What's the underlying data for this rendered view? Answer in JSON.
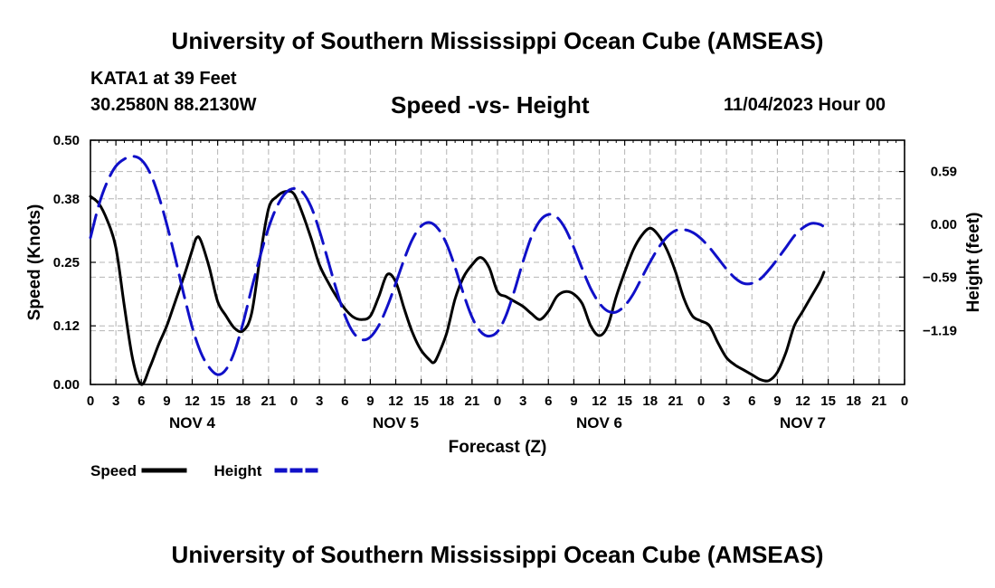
{
  "header": {
    "title": "University of Southern Mississippi Ocean Cube (AMSEAS)",
    "station": "KATA1 at 39 Feet",
    "coords": "30.2580N  88.2130W",
    "subtitle": "Speed -vs- Height",
    "datetime": "11/04/2023 Hour 00"
  },
  "footer": {
    "title": "University of Southern Mississippi Ocean Cube (AMSEAS)"
  },
  "chart_data": {
    "type": "line",
    "title": "Speed -vs- Height",
    "xlabel": "Forecast (Z)",
    "ylabel": "Speed (Knots)",
    "y2label": "Height (feet)",
    "xlim": [
      0,
      96
    ],
    "ylim": [
      0,
      0.5
    ],
    "y2lim": [
      -1.79,
      0.94
    ],
    "x_tick_hours": [
      0,
      3,
      6,
      9,
      12,
      15,
      18,
      21,
      24,
      27,
      30,
      33,
      36,
      39,
      42,
      45,
      48,
      51,
      54,
      57,
      60,
      63,
      66,
      69,
      72,
      75,
      78,
      81,
      84,
      87,
      90,
      93,
      96
    ],
    "x_tick_labels": [
      "0",
      "3",
      "6",
      "9",
      "12",
      "15",
      "18",
      "21",
      "0",
      "3",
      "6",
      "9",
      "12",
      "15",
      "18",
      "21",
      "0",
      "3",
      "6",
      "9",
      "12",
      "15",
      "18",
      "21",
      "0",
      "3",
      "6",
      "9",
      "12",
      "15",
      "18",
      "21",
      "0"
    ],
    "day_labels": [
      {
        "label": "NOV 4",
        "hour": 12
      },
      {
        "label": "NOV 5",
        "hour": 36
      },
      {
        "label": "NOV 6",
        "hour": 60
      },
      {
        "label": "NOV 7",
        "hour": 84
      }
    ],
    "y_ticks": [
      0.0,
      0.12,
      0.25,
      0.38,
      0.5
    ],
    "y_tick_labels": [
      "0.00",
      "0.12",
      "0.25",
      "0.38",
      "0.50"
    ],
    "y2_ticks": [
      0.59,
      0.0,
      -0.59,
      -1.19
    ],
    "y2_tick_labels": [
      "0.59",
      "0.00",
      "−0.59",
      "−1.19"
    ],
    "grid": true,
    "series": [
      {
        "name": "Speed",
        "axis": "left",
        "color": "#000000",
        "dash": "solid",
        "points": [
          [
            0,
            0.385
          ],
          [
            1,
            0.37
          ],
          [
            2,
            0.335
          ],
          [
            3,
            0.28
          ],
          [
            4,
            0.16
          ],
          [
            5,
            0.05
          ],
          [
            6,
            0.0
          ],
          [
            7,
            0.035
          ],
          [
            8,
            0.08
          ],
          [
            9,
            0.12
          ],
          [
            10,
            0.17
          ],
          [
            11,
            0.22
          ],
          [
            12,
            0.275
          ],
          [
            12.5,
            0.3
          ],
          [
            13,
            0.295
          ],
          [
            14,
            0.24
          ],
          [
            15,
            0.17
          ],
          [
            16,
            0.14
          ],
          [
            17,
            0.115
          ],
          [
            18,
            0.11
          ],
          [
            19,
            0.145
          ],
          [
            20,
            0.26
          ],
          [
            21,
            0.36
          ],
          [
            22,
            0.385
          ],
          [
            23,
            0.395
          ],
          [
            24,
            0.39
          ],
          [
            25,
            0.35
          ],
          [
            26,
            0.3
          ],
          [
            27,
            0.245
          ],
          [
            28,
            0.21
          ],
          [
            29,
            0.18
          ],
          [
            30,
            0.155
          ],
          [
            31,
            0.138
          ],
          [
            32,
            0.133
          ],
          [
            33,
            0.14
          ],
          [
            34,
            0.18
          ],
          [
            35,
            0.225
          ],
          [
            36,
            0.21
          ],
          [
            37,
            0.155
          ],
          [
            38,
            0.105
          ],
          [
            39,
            0.07
          ],
          [
            40,
            0.05
          ],
          [
            40.5,
            0.045
          ],
          [
            41,
            0.06
          ],
          [
            42,
            0.105
          ],
          [
            43,
            0.175
          ],
          [
            44,
            0.22
          ],
          [
            45,
            0.245
          ],
          [
            46,
            0.26
          ],
          [
            47,
            0.24
          ],
          [
            48,
            0.19
          ],
          [
            49,
            0.18
          ],
          [
            50,
            0.17
          ],
          [
            51,
            0.16
          ],
          [
            52,
            0.145
          ],
          [
            53,
            0.133
          ],
          [
            54,
            0.15
          ],
          [
            55,
            0.18
          ],
          [
            56,
            0.19
          ],
          [
            57,
            0.185
          ],
          [
            58,
            0.165
          ],
          [
            59,
            0.12
          ],
          [
            60,
            0.1
          ],
          [
            61,
            0.12
          ],
          [
            62,
            0.18
          ],
          [
            63,
            0.23
          ],
          [
            64,
            0.275
          ],
          [
            65,
            0.305
          ],
          [
            66,
            0.32
          ],
          [
            67,
            0.305
          ],
          [
            68,
            0.275
          ],
          [
            69,
            0.23
          ],
          [
            70,
            0.175
          ],
          [
            71,
            0.14
          ],
          [
            72,
            0.13
          ],
          [
            73,
            0.12
          ],
          [
            74,
            0.085
          ],
          [
            75,
            0.055
          ],
          [
            76,
            0.04
          ],
          [
            77,
            0.03
          ],
          [
            78,
            0.02
          ],
          [
            79,
            0.01
          ],
          [
            80,
            0.008
          ],
          [
            81,
            0.025
          ],
          [
            82,
            0.065
          ],
          [
            83,
            0.12
          ],
          [
            84,
            0.15
          ],
          [
            85,
            0.18
          ],
          [
            86,
            0.21
          ],
          [
            86.5,
            0.23
          ]
        ]
      },
      {
        "name": "Height",
        "axis": "right",
        "color": "#1010c8",
        "dash": "dashed",
        "points": [
          [
            0,
            -0.15
          ],
          [
            1,
            0.22
          ],
          [
            2,
            0.48
          ],
          [
            3,
            0.65
          ],
          [
            4,
            0.73
          ],
          [
            5,
            0.76
          ],
          [
            6,
            0.72
          ],
          [
            7,
            0.58
          ],
          [
            8,
            0.33
          ],
          [
            9,
            0.0
          ],
          [
            10,
            -0.38
          ],
          [
            11,
            -0.78
          ],
          [
            12,
            -1.15
          ],
          [
            13,
            -1.43
          ],
          [
            14,
            -1.6
          ],
          [
            15,
            -1.68
          ],
          [
            16,
            -1.62
          ],
          [
            17,
            -1.42
          ],
          [
            18,
            -1.1
          ],
          [
            19,
            -0.72
          ],
          [
            20,
            -0.36
          ],
          [
            21,
            -0.04
          ],
          [
            22,
            0.2
          ],
          [
            23,
            0.35
          ],
          [
            24,
            0.4
          ],
          [
            25,
            0.36
          ],
          [
            26,
            0.2
          ],
          [
            27,
            -0.07
          ],
          [
            28,
            -0.4
          ],
          [
            29,
            -0.73
          ],
          [
            30,
            -1.02
          ],
          [
            31,
            -1.21
          ],
          [
            32,
            -1.29
          ],
          [
            33,
            -1.26
          ],
          [
            34,
            -1.13
          ],
          [
            35,
            -0.92
          ],
          [
            36,
            -0.66
          ],
          [
            37,
            -0.39
          ],
          [
            38,
            -0.16
          ],
          [
            39,
            -0.02
          ],
          [
            40,
            0.02
          ],
          [
            41,
            -0.05
          ],
          [
            42,
            -0.22
          ],
          [
            43,
            -0.48
          ],
          [
            44,
            -0.78
          ],
          [
            45,
            -1.04
          ],
          [
            46,
            -1.2
          ],
          [
            47,
            -1.25
          ],
          [
            48,
            -1.2
          ],
          [
            49,
            -1.02
          ],
          [
            50,
            -0.74
          ],
          [
            51,
            -0.42
          ],
          [
            52,
            -0.14
          ],
          [
            53,
            0.04
          ],
          [
            54,
            0.11
          ],
          [
            55,
            0.08
          ],
          [
            56,
            -0.05
          ],
          [
            57,
            -0.26
          ],
          [
            58,
            -0.5
          ],
          [
            59,
            -0.72
          ],
          [
            60,
            -0.88
          ],
          [
            61,
            -0.97
          ],
          [
            62,
            -0.98
          ],
          [
            63,
            -0.91
          ],
          [
            64,
            -0.78
          ],
          [
            65,
            -0.6
          ],
          [
            66,
            -0.42
          ],
          [
            67,
            -0.26
          ],
          [
            68,
            -0.14
          ],
          [
            69,
            -0.07
          ],
          [
            70,
            -0.06
          ],
          [
            71,
            -0.09
          ],
          [
            72,
            -0.16
          ],
          [
            73,
            -0.26
          ],
          [
            74,
            -0.38
          ],
          [
            75,
            -0.5
          ],
          [
            76,
            -0.6
          ],
          [
            77,
            -0.66
          ],
          [
            78,
            -0.66
          ],
          [
            79,
            -0.61
          ],
          [
            80,
            -0.51
          ],
          [
            81,
            -0.39
          ],
          [
            82,
            -0.26
          ],
          [
            83,
            -0.13
          ],
          [
            84,
            -0.04
          ],
          [
            85,
            0.01
          ],
          [
            86,
            0.0
          ],
          [
            86.5,
            -0.03
          ]
        ]
      }
    ],
    "legend": [
      {
        "label": "Speed",
        "color": "#000000",
        "dash": "solid"
      },
      {
        "label": "Height",
        "color": "#1010c8",
        "dash": "dashed"
      }
    ],
    "legend_position": "bottom-left"
  }
}
